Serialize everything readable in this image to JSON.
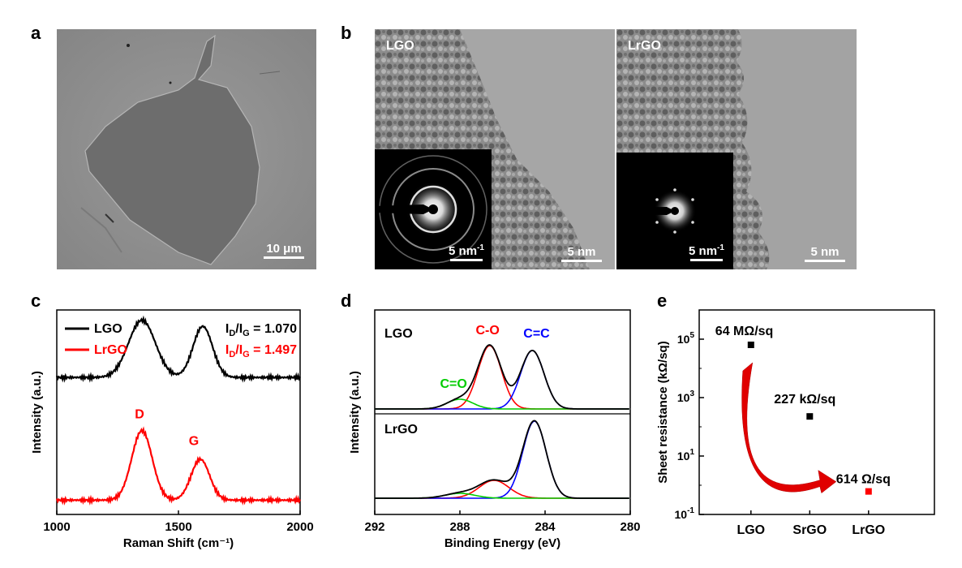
{
  "panels": {
    "a": {
      "letter": "a",
      "scale_bar": "10 μm",
      "colors": {
        "background": "#8f8f8f",
        "flake": "#6b6b6b"
      }
    },
    "b": {
      "letter": "b",
      "left": {
        "label": "LGO",
        "inset_scale": "5 nm",
        "inset_scale_sup": "-1",
        "scale": "5 nm"
      },
      "right": {
        "label": "LrGO",
        "inset_scale": "5 nm",
        "inset_scale_sup": "-1",
        "scale": "5 nm"
      }
    },
    "c": {
      "letter": "c"
    },
    "d": {
      "letter": "d"
    },
    "e": {
      "letter": "e"
    }
  },
  "chart_data": [
    {
      "id": "c",
      "type": "line",
      "title": "",
      "xlabel": "Raman Shift (cm⁻¹)",
      "ylabel": "Intensity (a.u.)",
      "xlim": [
        1000,
        2000
      ],
      "xticks": [
        1000,
        1500,
        2000
      ],
      "series": [
        {
          "name": "LGO",
          "color": "#000000",
          "offset": 0.55,
          "baseline": 0.12,
          "peaks": [
            {
              "center": 1350,
              "height": 0.28,
              "width": 55
            },
            {
              "center": 1600,
              "height": 0.25,
              "width": 40
            }
          ],
          "ratio_label": "I",
          "ratio_sub": "D",
          "ratio_sep": "/I",
          "ratio_sub2": "G",
          "ratio_value": " = 1.070"
        },
        {
          "name": "LrGO",
          "color": "#ff0000",
          "offset": 0.0,
          "baseline": 0.07,
          "peaks": [
            {
              "center": 1350,
              "height": 0.34,
              "width": 42
            },
            {
              "center": 1590,
              "height": 0.2,
              "width": 38
            }
          ],
          "ratio_label": "I",
          "ratio_sub": "D",
          "ratio_sep": "/I",
          "ratio_sub2": "G",
          "ratio_value": " = 1.497"
        }
      ],
      "annotations": [
        {
          "text": "D",
          "x": 1350,
          "color": "#ff0000"
        },
        {
          "text": "G",
          "x": 1590,
          "color": "#ff0000"
        }
      ]
    },
    {
      "id": "d",
      "type": "line",
      "title": "",
      "xlabel": "Binding Energy (eV)",
      "ylabel": "Intensity (a.u.)",
      "xlim": [
        292,
        280
      ],
      "xticks": [
        292,
        288,
        284,
        280
      ],
      "spectra": [
        {
          "name": "LGO",
          "components": [
            {
              "label": "C-O",
              "center": 286.6,
              "height": 0.78,
              "width": 0.55,
              "color": "#ff0000"
            },
            {
              "label": "C=C",
              "center": 284.6,
              "height": 0.72,
              "width": 0.55,
              "color": "#0000ff"
            },
            {
              "label": "C=O",
              "center": 288.0,
              "height": 0.12,
              "width": 0.6,
              "color": "#00cc00"
            }
          ]
        },
        {
          "name": "LrGO",
          "components": [
            {
              "label": "C-O",
              "center": 286.4,
              "height": 0.22,
              "width": 0.7,
              "color": "#ff0000"
            },
            {
              "label": "C=C",
              "center": 284.5,
              "height": 0.95,
              "width": 0.55,
              "color": "#0000ff"
            },
            {
              "label": "C=O",
              "center": 288.0,
              "height": 0.06,
              "width": 0.7,
              "color": "#00cc00"
            }
          ]
        }
      ],
      "legend_labels": {
        "c_o": "C-O",
        "c_c": "C=C",
        "c_eq_o": "C=O"
      }
    },
    {
      "id": "e",
      "type": "scatter",
      "title": "",
      "xlabel": "",
      "ylabel": "Sheet resistance (kΩ/sq)",
      "yscale": "log",
      "ylim": [
        0.1,
        1000000
      ],
      "categories": [
        "LGO",
        "SrGO",
        "LrGO"
      ],
      "values": [
        64000,
        227,
        0.614
      ],
      "point_colors": [
        "#000000",
        "#000000",
        "#ff0000"
      ],
      "point_labels": [
        "64 MΩ/sq",
        "227 kΩ/sq",
        "614 Ω/sq"
      ],
      "yticks": [
        {
          "value": 0.1,
          "base": "10",
          "exp": "-1"
        },
        {
          "value": 10,
          "base": "10",
          "exp": "1"
        },
        {
          "value": 1000,
          "base": "10",
          "exp": "3"
        },
        {
          "value": 100000,
          "base": "10",
          "exp": "5"
        }
      ]
    }
  ]
}
